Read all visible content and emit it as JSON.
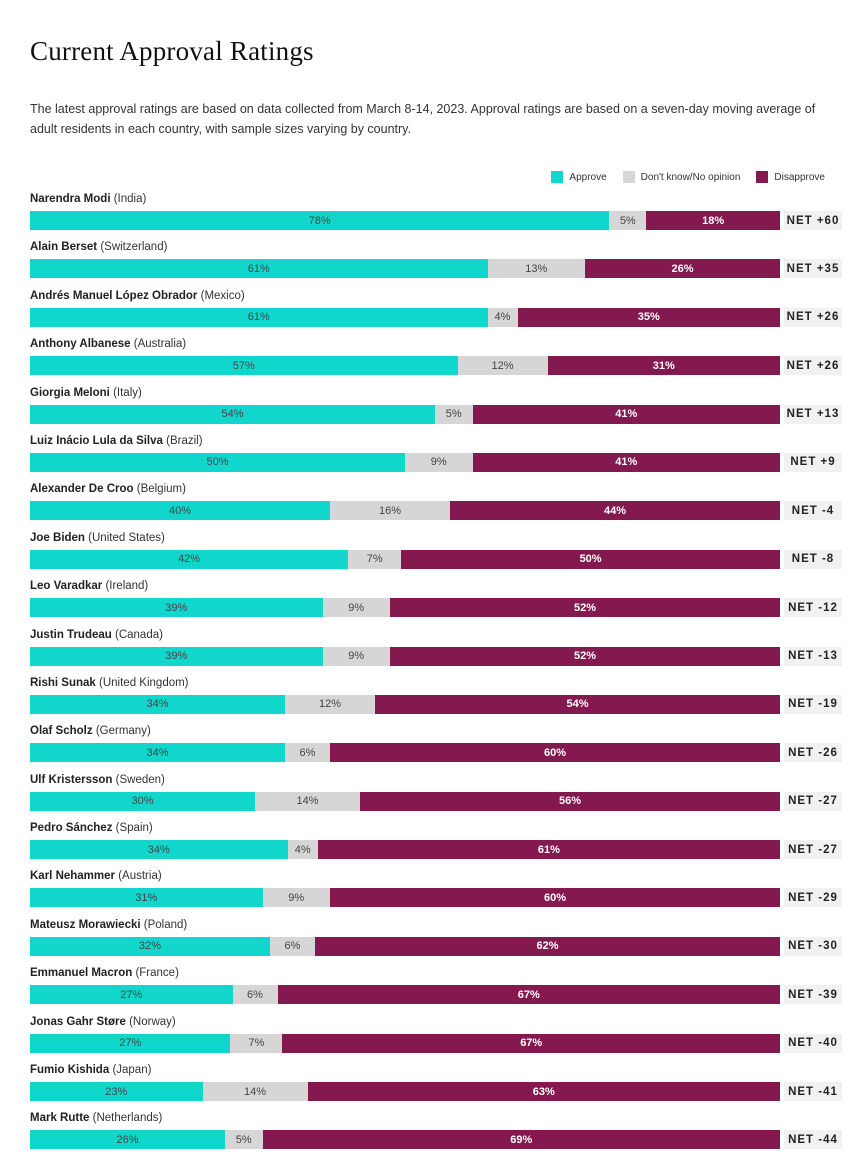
{
  "title": "Current Approval Ratings",
  "subtitle": "The latest approval ratings are based on data collected from March 8-14, 2023. Approval ratings are based on a seven-day moving average of adult residents in each country, with sample sizes varying by country.",
  "colors": {
    "approve": "#11d6cc",
    "neutral": "#d6d6d6",
    "disapprove": "#84194f"
  },
  "chart_data": {
    "type": "bar",
    "stacked": true,
    "orientation": "horizontal",
    "legend": {
      "placement": "top-right",
      "entries": [
        "Approve",
        "Don't know/No opinion",
        "Disapprove"
      ]
    },
    "rows": [
      {
        "leader": "Narendra Modi",
        "country": "(India)",
        "approve": 78,
        "neutral": 5,
        "disapprove": 18,
        "net": "NET +60"
      },
      {
        "leader": "Alain Berset",
        "country": "(Switzerland)",
        "approve": 61,
        "neutral": 13,
        "disapprove": 26,
        "net": "NET +35"
      },
      {
        "leader": "Andrés Manuel López Obrador",
        "country": "(Mexico)",
        "approve": 61,
        "neutral": 4,
        "disapprove": 35,
        "net": "NET +26"
      },
      {
        "leader": "Anthony Albanese",
        "country": "(Australia)",
        "approve": 57,
        "neutral": 12,
        "disapprove": 31,
        "net": "NET +26"
      },
      {
        "leader": "Giorgia Meloni",
        "country": "(Italy)",
        "approve": 54,
        "neutral": 5,
        "disapprove": 41,
        "net": "NET +13"
      },
      {
        "leader": "Luiz Inácio Lula da Silva",
        "country": "(Brazil)",
        "approve": 50,
        "neutral": 9,
        "disapprove": 41,
        "net": "NET +9"
      },
      {
        "leader": "Alexander De Croo",
        "country": "(Belgium)",
        "approve": 40,
        "neutral": 16,
        "disapprove": 44,
        "net": "NET -4"
      },
      {
        "leader": "Joe Biden",
        "country": "(United States)",
        "approve": 42,
        "neutral": 7,
        "disapprove": 50,
        "net": "NET -8"
      },
      {
        "leader": "Leo Varadkar",
        "country": "(Ireland)",
        "approve": 39,
        "neutral": 9,
        "disapprove": 52,
        "net": "NET -12"
      },
      {
        "leader": "Justin Trudeau",
        "country": "(Canada)",
        "approve": 39,
        "neutral": 9,
        "disapprove": 52,
        "net": "NET -13"
      },
      {
        "leader": "Rishi Sunak",
        "country": "(United Kingdom)",
        "approve": 34,
        "neutral": 12,
        "disapprove": 54,
        "net": "NET -19"
      },
      {
        "leader": "Olaf Scholz",
        "country": "(Germany)",
        "approve": 34,
        "neutral": 6,
        "disapprove": 60,
        "net": "NET -26"
      },
      {
        "leader": "Ulf Kristersson",
        "country": "(Sweden)",
        "approve": 30,
        "neutral": 14,
        "disapprove": 56,
        "net": "NET -27"
      },
      {
        "leader": "Pedro Sánchez",
        "country": "(Spain)",
        "approve": 34,
        "neutral": 4,
        "disapprove": 61,
        "net": "NET -27"
      },
      {
        "leader": "Karl Nehammer",
        "country": "(Austria)",
        "approve": 31,
        "neutral": 9,
        "disapprove": 60,
        "net": "NET -29"
      },
      {
        "leader": "Mateusz Morawiecki",
        "country": "(Poland)",
        "approve": 32,
        "neutral": 6,
        "disapprove": 62,
        "net": "NET -30"
      },
      {
        "leader": "Emmanuel Macron",
        "country": "(France)",
        "approve": 27,
        "neutral": 6,
        "disapprove": 67,
        "net": "NET -39"
      },
      {
        "leader": "Jonas Gahr Støre",
        "country": "(Norway)",
        "approve": 27,
        "neutral": 7,
        "disapprove": 67,
        "net": "NET -40"
      },
      {
        "leader": "Fumio Kishida",
        "country": "(Japan)",
        "approve": 23,
        "neutral": 14,
        "disapprove": 63,
        "net": "NET -41"
      },
      {
        "leader": "Mark Rutte",
        "country": "(Netherlands)",
        "approve": 26,
        "neutral": 5,
        "disapprove": 69,
        "net": "NET -44"
      }
    ]
  }
}
